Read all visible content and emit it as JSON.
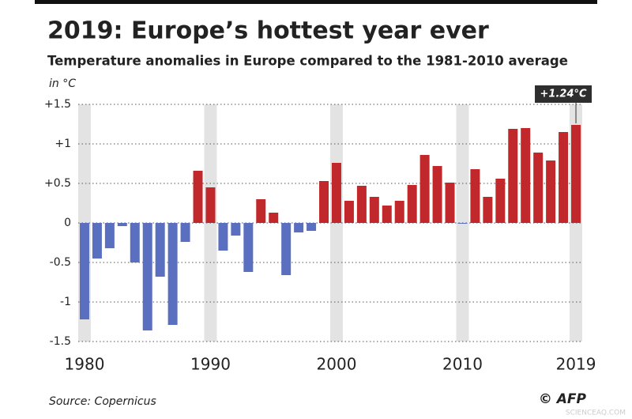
{
  "chart_data": {
    "type": "bar",
    "title": "2019: Europe’s hottest year ever",
    "subtitle": "Temperature anomalies in Europe compared to the 1981-2010 average",
    "y_unit": "in °C",
    "source": "Source: Copernicus",
    "credit": "© AFP",
    "watermark": "SCIENCEAQ.COM",
    "x": [
      1980,
      1981,
      1982,
      1983,
      1984,
      1985,
      1986,
      1987,
      1988,
      1989,
      1990,
      1991,
      1992,
      1993,
      1994,
      1995,
      1996,
      1997,
      1998,
      1999,
      2000,
      2001,
      2002,
      2003,
      2004,
      2005,
      2006,
      2007,
      2008,
      2009,
      2010,
      2011,
      2012,
      2013,
      2014,
      2015,
      2016,
      2017,
      2018,
      2019
    ],
    "values": [
      -1.22,
      -0.45,
      -0.32,
      -0.04,
      -0.5,
      -1.36,
      -0.68,
      -1.29,
      -0.24,
      0.66,
      0.45,
      -0.35,
      -0.16,
      -0.62,
      0.3,
      0.13,
      -0.66,
      -0.12,
      -0.1,
      0.53,
      0.76,
      0.28,
      0.47,
      0.33,
      0.22,
      0.28,
      0.48,
      0.86,
      0.72,
      0.51,
      -0.01,
      0.68,
      0.33,
      0.56,
      1.19,
      1.2,
      0.89,
      0.79,
      1.15,
      1.24
    ],
    "value_labels": [
      null,
      null,
      null,
      null,
      null,
      null,
      null,
      null,
      null,
      null,
      null,
      null,
      null,
      null,
      null,
      null,
      null,
      null,
      null,
      null,
      null,
      null,
      null,
      null,
      null,
      null,
      null,
      null,
      null,
      null,
      null,
      null,
      null,
      null,
      null,
      null,
      null,
      null,
      null,
      "+1.24°C"
    ],
    "positive_color": "#c0282b",
    "negative_color": "#5a6fbf",
    "xlim": [
      1979.5,
      2019.5
    ],
    "xticks": [
      1980,
      1990,
      2000,
      2010,
      2019
    ],
    "ylim": [
      -1.5,
      1.5
    ],
    "yticks": [
      {
        "value": 1.5,
        "label": "+1.5"
      },
      {
        "value": 1,
        "label": "+1"
      },
      {
        "value": 0.5,
        "label": "+0.5"
      },
      0,
      -0.5,
      -1,
      -1.5
    ],
    "grid": true
  }
}
